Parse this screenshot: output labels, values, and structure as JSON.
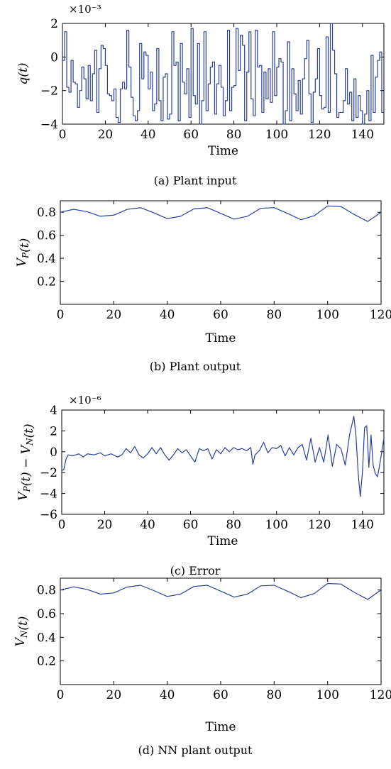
{
  "chart_data": [
    {
      "id": "a",
      "type": "line",
      "caption": "(a)  Plant input",
      "xlabel": "Time",
      "ylabel": "q(t)",
      "y_multiplier": "×10⁻³",
      "xlim": [
        0,
        150
      ],
      "ylim": [
        -4,
        2
      ],
      "xticks": [
        0,
        20,
        40,
        60,
        80,
        100,
        120,
        140
      ],
      "yticks": [
        -4,
        -2,
        0,
        2
      ],
      "ytick_labels": [
        "−4",
        "−2",
        "0",
        "2"
      ],
      "series": [
        {
          "style": "step",
          "x": [
            0,
            1,
            2,
            3,
            4,
            5,
            6,
            7,
            8,
            9,
            10,
            11,
            12,
            13,
            14,
            15,
            16,
            17,
            18,
            19,
            20,
            21,
            22,
            23,
            24,
            25,
            26,
            27,
            28,
            29,
            30,
            31,
            32,
            33,
            34,
            35,
            36,
            37,
            38,
            39,
            40,
            41,
            42,
            43,
            44,
            45,
            46,
            47,
            48,
            49,
            50,
            51,
            52,
            53,
            54,
            55,
            56,
            57,
            58,
            59,
            60,
            61,
            62,
            63,
            64,
            65,
            66,
            67,
            68,
            69,
            70,
            71,
            72,
            73,
            74,
            75,
            76,
            77,
            78,
            79,
            80,
            81,
            82,
            83,
            84,
            85,
            86,
            87,
            88,
            89,
            90,
            91,
            92,
            93,
            94,
            95,
            96,
            97,
            98,
            99,
            100,
            101,
            102,
            103,
            104,
            105,
            106,
            107,
            108,
            109,
            110,
            111,
            112,
            113,
            114,
            115,
            116,
            117,
            118,
            119,
            120,
            121,
            122,
            123,
            124,
            125,
            126,
            127,
            128,
            129,
            130,
            131,
            132,
            133,
            134,
            135,
            136,
            137,
            138,
            139,
            140,
            141,
            142,
            143,
            144,
            145,
            146,
            147,
            148,
            149,
            150
          ],
          "y": [
            -0.2,
            1.5,
            -1.8,
            -2.1,
            -0.2,
            -1.5,
            -1.6,
            -3.0,
            -2.0,
            -0.6,
            -1.3,
            -2.5,
            -0.5,
            -2.6,
            -1.0,
            0.4,
            -3.3,
            -0.7,
            0.7,
            0.5,
            -0.5,
            -2.2,
            -2.3,
            -2.6,
            -1.9,
            -3.6,
            -3.9,
            -1.9,
            -1.5,
            -1.9,
            1.6,
            -0.6,
            -2.4,
            -3.5,
            -3.8,
            -3.2,
            0.8,
            -1.3,
            0.3,
            0.1,
            -1.9,
            -0.9,
            -3.2,
            -2.8,
            0.5,
            -2.6,
            -3.8,
            -1.2,
            -1.0,
            -3.7,
            -3.4,
            1.5,
            -0.5,
            -0.3,
            -3.8,
            0.8,
            -1.5,
            -2.2,
            -0.7,
            -3.6,
            1.7,
            -2.3,
            -2.8,
            0.8,
            -4.0,
            -2.6,
            1.5,
            -3.2,
            -1.6,
            -0.6,
            -0.3,
            -3.4,
            -1.6,
            -0.5,
            -1.8,
            -3.5,
            -2.6,
            1.6,
            -3.2,
            -1.8,
            -1.7,
            1.7,
            -0.8,
            1.3,
            0.7,
            -3.8,
            -0.9,
            1.5,
            -2.5,
            -3.5,
            1.6,
            -0.6,
            -0.5,
            -3.3,
            -0.9,
            -2.5,
            -0.7,
            -2.7,
            1.5,
            -2.3,
            -0.6,
            -0.1,
            -0.3,
            -4.0,
            -3.2,
            0.9,
            -3.8,
            -0.7,
            -2.2,
            -3.2,
            -1.4,
            -3.4,
            -1.3,
            -0.1,
            1.0,
            -2.2,
            -3.9,
            -2.1,
            -1.3,
            0.5,
            -2.3,
            -3.1,
            -3.0,
            1.2,
            -3.3,
            2.2,
            0.4,
            -1.0,
            -3.6,
            -3.3,
            -3.3,
            -2.6,
            -0.7,
            -2.8,
            -2.1,
            -3.8,
            -1.3,
            -3.6,
            -2.3,
            -3.2,
            -4.0,
            -3.4,
            -2.0,
            -3.8,
            0.1,
            -3.3,
            -1.2,
            -0.2,
            0.3,
            -3.3,
            -3.3
          ]
        }
      ]
    },
    {
      "id": "b",
      "type": "line",
      "caption": "(b)  Plant output",
      "xlabel": "Time",
      "ylabel": "V_P(t)",
      "xlim": [
        0,
        120
      ],
      "ylim": [
        0,
        0.9
      ],
      "xticks": [
        0,
        20,
        40,
        60,
        80,
        100,
        120
      ],
      "yticks": [
        0.2,
        0.4,
        0.6,
        0.8
      ],
      "ytick_labels": [
        "0.2",
        "0.4",
        "0.6",
        "0.8"
      ],
      "series": [
        {
          "x": [
            0,
            5,
            10,
            15,
            20,
            25,
            30,
            35,
            40,
            45,
            50,
            55,
            60,
            65,
            70,
            75,
            80,
            85,
            90,
            95,
            100,
            105,
            110,
            115,
            120
          ],
          "y": [
            0.8,
            0.826,
            0.805,
            0.765,
            0.775,
            0.825,
            0.84,
            0.795,
            0.745,
            0.765,
            0.83,
            0.84,
            0.79,
            0.74,
            0.765,
            0.835,
            0.84,
            0.79,
            0.735,
            0.77,
            0.855,
            0.85,
            0.78,
            0.72,
            0.8
          ]
        }
      ]
    },
    {
      "id": "c",
      "type": "line",
      "caption": "(c)  Error",
      "xlabel": "Time",
      "ylabel": "V_P(t) − V_N(t)",
      "y_multiplier": "×10⁻⁶",
      "xlim": [
        0,
        150
      ],
      "ylim": [
        -6,
        4
      ],
      "xticks": [
        0,
        20,
        40,
        60,
        80,
        100,
        120,
        140
      ],
      "yticks": [
        -6,
        -4,
        -2,
        0,
        2,
        4
      ],
      "ytick_labels": [
        "−6",
        "−4",
        "−2",
        "0",
        "2",
        "4"
      ],
      "series": [
        {
          "x": [
            0,
            1,
            2,
            3,
            5,
            8,
            10,
            12,
            15,
            18,
            20,
            23,
            26,
            28,
            30,
            32,
            34,
            36,
            38,
            40,
            42,
            44,
            46,
            48,
            50,
            52,
            54,
            56,
            58,
            60,
            62,
            64,
            66,
            68,
            70,
            72,
            74,
            76,
            78,
            80,
            82,
            84,
            86,
            88,
            89,
            90,
            92,
            94,
            96,
            98,
            100,
            102,
            104,
            106,
            108,
            110,
            112,
            114,
            116,
            118,
            120,
            122,
            124,
            126,
            128,
            130,
            132,
            134,
            136,
            137,
            138,
            139,
            140,
            141,
            142,
            143,
            144,
            145,
            146,
            147,
            148,
            150
          ],
          "y": [
            -1.8,
            -1.7,
            -0.7,
            -0.3,
            -0.4,
            -0.2,
            -0.5,
            -0.2,
            -0.3,
            -0.1,
            -0.4,
            -0.2,
            -0.5,
            -0.3,
            0.3,
            -0.1,
            0.5,
            -0.3,
            -0.6,
            -0.2,
            0.4,
            -0.2,
            0.4,
            -0.3,
            -0.8,
            -0.3,
            0.3,
            -0.1,
            0.2,
            -0.4,
            -1.0,
            0.3,
            0.1,
            0.3,
            -0.7,
            0.2,
            -0.2,
            0.4,
            0.0,
            0.4,
            0.2,
            0.3,
            0.1,
            0.4,
            -1.2,
            -0.3,
            0.1,
            0.9,
            -0.1,
            0.4,
            0.3,
            0.6,
            -0.4,
            0.4,
            -0.3,
            0.4,
            0.7,
            -0.8,
            1.3,
            -1.0,
            0.4,
            -1.0,
            1.6,
            -1.4,
            0.7,
            0.3,
            -1.3,
            1.6,
            3.4,
            1.5,
            -2.0,
            -4.3,
            -2.0,
            2.3,
            2.5,
            -1.5,
            1.6,
            -1.3,
            -2.1,
            -2.4,
            -1.3,
            1.3
          ]
        }
      ]
    },
    {
      "id": "d",
      "type": "line",
      "caption": "(d)  NN plant output",
      "xlabel": "Time",
      "ylabel": "V_N(t)",
      "xlim": [
        0,
        120
      ],
      "ylim": [
        0,
        0.9
      ],
      "xticks": [
        0,
        20,
        40,
        60,
        80,
        100,
        120
      ],
      "yticks": [
        0.2,
        0.4,
        0.6,
        0.8
      ],
      "ytick_labels": [
        "0.2",
        "0.4",
        "0.6",
        "0.8"
      ],
      "series": [
        {
          "x": [
            0,
            5,
            10,
            15,
            20,
            25,
            30,
            35,
            40,
            45,
            50,
            55,
            60,
            65,
            70,
            75,
            80,
            85,
            90,
            95,
            100,
            105,
            110,
            115,
            120
          ],
          "y": [
            0.8,
            0.826,
            0.805,
            0.765,
            0.775,
            0.825,
            0.84,
            0.795,
            0.745,
            0.765,
            0.83,
            0.84,
            0.79,
            0.74,
            0.765,
            0.835,
            0.84,
            0.79,
            0.735,
            0.77,
            0.855,
            0.85,
            0.78,
            0.72,
            0.8
          ]
        }
      ]
    }
  ]
}
